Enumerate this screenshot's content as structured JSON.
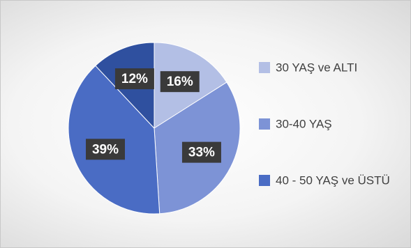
{
  "chart_data": {
    "type": "pie",
    "categories": [
      "30 YAŞ ve ALTI",
      "30-40 YAŞ",
      "40 - 50 YAŞ ve ÜSTÜ",
      null
    ],
    "values": [
      16,
      33,
      39,
      12
    ],
    "value_labels": [
      "16%",
      "33%",
      "39%",
      "12%"
    ],
    "colors": [
      "#b3bfe5",
      "#7d93d6",
      "#4a6cc4",
      "#2f509f"
    ],
    "legend": "right"
  }
}
